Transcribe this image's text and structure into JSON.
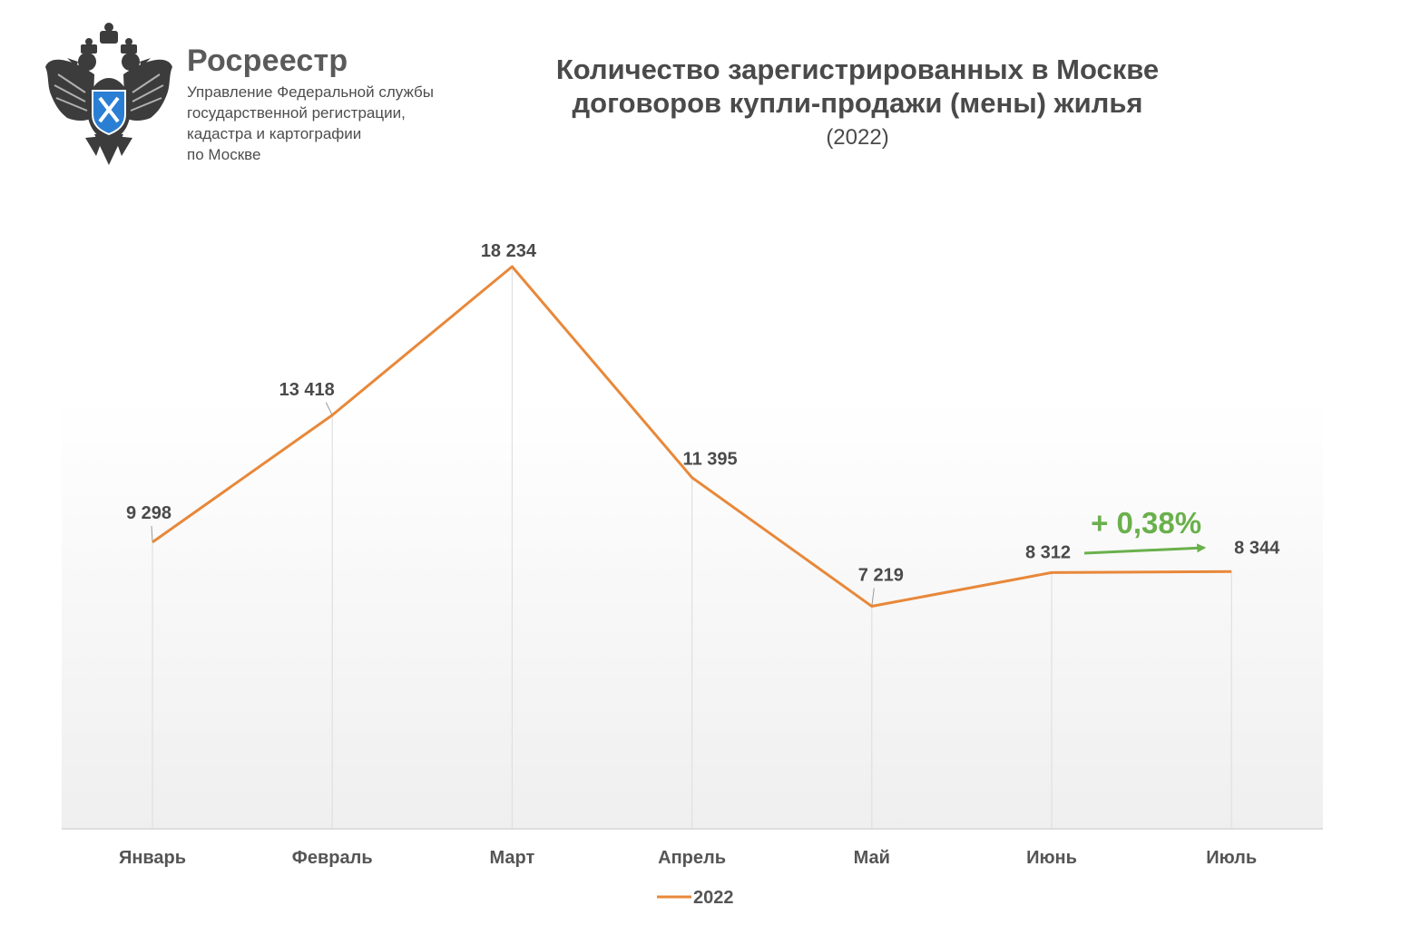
{
  "header": {
    "brand_name": "Росреестр",
    "brand_subtitle_lines": [
      "Управление Федеральной службы",
      "государственной регистрации,",
      "кадастра и картографии",
      "по Москве"
    ],
    "logo_icon": "double-headed-eagle-emblem-icon"
  },
  "chart_data": {
    "type": "line",
    "title_lines": [
      "Количество зарегистрированных в Москве",
      "договоров купли-продажи (мены) жилья"
    ],
    "subtitle": "(2022)",
    "categories": [
      "Январь",
      "Февраль",
      "Март",
      "Апрель",
      "Май",
      "Июнь",
      "Июль"
    ],
    "series": [
      {
        "name": "2022",
        "values": [
          9298,
          13418,
          18234,
          11395,
          7219,
          8312,
          8344
        ],
        "labels": [
          "9 298",
          "13 418",
          "18 234",
          "11 395",
          "7 219",
          "8 312",
          "8 344"
        ],
        "color": "#e8883a"
      }
    ],
    "ylim": [
      0,
      18234
    ],
    "grid": "vertical",
    "legend_position": "bottom",
    "annotation": {
      "text": "+ 0,38%",
      "from_category": "Июнь",
      "to_category": "Июль",
      "color": "#6ab04c"
    }
  },
  "colors": {
    "line": "#e8883a",
    "annotation": "#6ab04c",
    "text": "#4a4a4a",
    "gridline": "#dddddd"
  }
}
